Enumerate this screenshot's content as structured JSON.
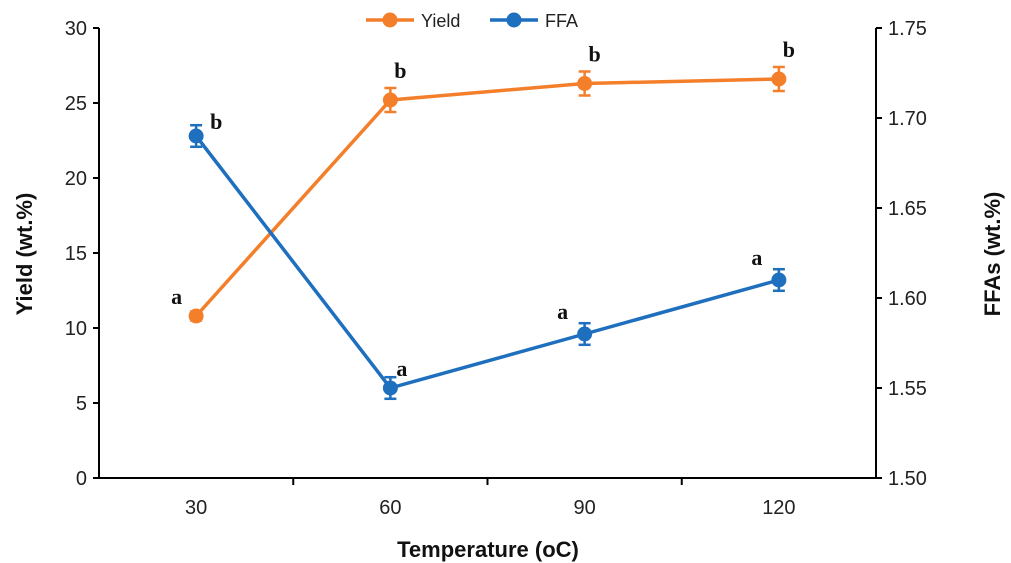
{
  "chart_data": {
    "type": "line",
    "xlabel": "Temperature (oC)",
    "x_ticks": [
      "30",
      "60",
      "90",
      "120"
    ],
    "x": [
      30,
      60,
      90,
      120
    ],
    "xlim": [
      15,
      135
    ],
    "y_left": {
      "label": "Yield (wt.%)",
      "lim": [
        0,
        30
      ],
      "ticks": [
        "0",
        "5",
        "10",
        "15",
        "20",
        "25",
        "30"
      ]
    },
    "y_right": {
      "label": "FFAs (wt.%)",
      "lim": [
        1.5,
        1.75
      ],
      "ticks": [
        "1.50",
        "1.55",
        "1.60",
        "1.65",
        "1.70",
        "1.75"
      ]
    },
    "legend": {
      "placement": "top-center"
    },
    "series": [
      {
        "name": "Yield",
        "axis": "left",
        "color": "#F47F2B",
        "values": [
          10.8,
          25.2,
          26.3,
          26.6
        ],
        "errors": [
          0.3,
          0.8,
          0.8,
          0.8
        ],
        "labels": [
          "a",
          "b",
          "b",
          "b"
        ]
      },
      {
        "name": "FFA",
        "axis": "right",
        "color": "#1F6FBF",
        "values": [
          1.69,
          1.55,
          1.58,
          1.61
        ],
        "errors": [
          0.006,
          0.006,
          0.006,
          0.006
        ],
        "labels": [
          "b",
          "a",
          "a",
          "a"
        ]
      }
    ]
  }
}
